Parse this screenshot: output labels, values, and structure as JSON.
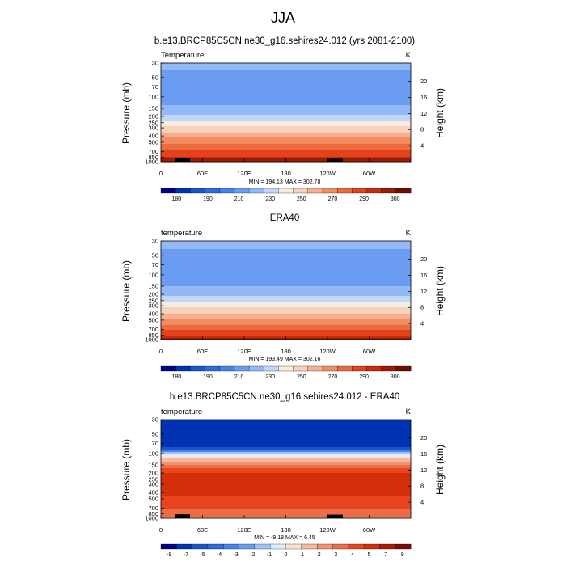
{
  "page": {
    "title": "JJA"
  },
  "colors": {
    "scale_blue_to_red": [
      "#00008b",
      "#0033b3",
      "#1a55cc",
      "#2e6be0",
      "#4682ec",
      "#6a9cf2",
      "#93b8f6",
      "#c2d6fa",
      "#f5ece2",
      "#f9d2be",
      "#f6b08f",
      "#f28d62",
      "#ec6a3c",
      "#e2431c",
      "#c72b0c",
      "#9c1a06",
      "#6a0d02"
    ],
    "diff_scale": [
      "#00008b",
      "#0033b3",
      "#1a55cc",
      "#2e6be0",
      "#4682ec",
      "#6a9cf2",
      "#a0c2f8",
      "#e0ecfc",
      "#fbe1d2",
      "#f7b99b",
      "#f39271",
      "#ee6c47",
      "#e7441f",
      "#d22f0a",
      "#a71c05",
      "#7a0c02"
    ],
    "topography": "#000000"
  },
  "chart_data": [
    {
      "type": "heatmap",
      "title": "b.e13.BRCP85C5CN.ne30_g16.sehires24.012 (yrs 2081-2100)",
      "left_label": "Temperature",
      "right_label": "K",
      "xlabel": "",
      "ylabel": "Pressure (mb)",
      "ylabel_right": "Height (km)",
      "x_ticks": [
        "0",
        "60E",
        "120E",
        "180",
        "120W",
        "60W"
      ],
      "x_tick_lon": [
        0,
        60,
        120,
        180,
        240,
        300
      ],
      "xlim": [
        0,
        360
      ],
      "y_scale": "log",
      "ylim": [
        1000,
        30
      ],
      "y_ticks": [
        30,
        50,
        70,
        100,
        150,
        200,
        250,
        300,
        400,
        500,
        700,
        850,
        1000
      ],
      "height_ticks_km": [
        4,
        8,
        12,
        16,
        20
      ],
      "stats": "MIN = 194.13  MAX = 302.78",
      "colorbar_labels": [
        "180",
        "190",
        "210",
        "230",
        "250",
        "270",
        "290",
        "300"
      ],
      "approx_profile_K": [
        {
          "p": 1000,
          "v": 300
        },
        {
          "p": 850,
          "v": 291
        },
        {
          "p": 700,
          "v": 283
        },
        {
          "p": 500,
          "v": 266
        },
        {
          "p": 400,
          "v": 257
        },
        {
          "p": 300,
          "v": 243
        },
        {
          "p": 250,
          "v": 233
        },
        {
          "p": 200,
          "v": 222
        },
        {
          "p": 150,
          "v": 212
        },
        {
          "p": 100,
          "v": 203
        },
        {
          "p": 70,
          "v": 205
        },
        {
          "p": 50,
          "v": 208
        },
        {
          "p": 30,
          "v": 212
        }
      ]
    },
    {
      "type": "heatmap",
      "title": "ERA40",
      "left_label": "temperature",
      "right_label": "K",
      "xlabel": "",
      "ylabel": "Pressure (mb)",
      "ylabel_right": "Height (km)",
      "x_ticks": [
        "0",
        "60E",
        "120E",
        "180",
        "120W",
        "60W"
      ],
      "x_tick_lon": [
        0,
        60,
        120,
        180,
        240,
        300
      ],
      "xlim": [
        0,
        360
      ],
      "y_scale": "log",
      "ylim": [
        1000,
        30
      ],
      "y_ticks": [
        30,
        50,
        70,
        100,
        150,
        200,
        250,
        300,
        400,
        500,
        700,
        850,
        1000
      ],
      "height_ticks_km": [
        4,
        8,
        12,
        16,
        20
      ],
      "stats": "MIN = 193.49  MAX = 302.16",
      "colorbar_labels": [
        "180",
        "190",
        "210",
        "230",
        "250",
        "270",
        "290",
        "300"
      ],
      "approx_profile_K": [
        {
          "p": 1000,
          "v": 297
        },
        {
          "p": 850,
          "v": 287
        },
        {
          "p": 700,
          "v": 279
        },
        {
          "p": 500,
          "v": 262
        },
        {
          "p": 400,
          "v": 251
        },
        {
          "p": 300,
          "v": 236
        },
        {
          "p": 250,
          "v": 226
        },
        {
          "p": 200,
          "v": 218
        },
        {
          "p": 150,
          "v": 210
        },
        {
          "p": 100,
          "v": 201
        },
        {
          "p": 70,
          "v": 204
        },
        {
          "p": 50,
          "v": 208
        },
        {
          "p": 30,
          "v": 213
        }
      ]
    },
    {
      "type": "heatmap",
      "title": "b.e13.BRCP85C5CN.ne30_g16.sehires24.012 - ERA40",
      "left_label": "temperature",
      "right_label": "K",
      "xlabel": "",
      "ylabel": "Pressure (mb)",
      "ylabel_right": "Height (km)",
      "x_ticks": [
        "0",
        "60E",
        "120E",
        "180",
        "120W",
        "60W"
      ],
      "x_tick_lon": [
        0,
        60,
        120,
        180,
        240,
        300
      ],
      "xlim": [
        0,
        360
      ],
      "y_scale": "log",
      "ylim": [
        1000,
        30
      ],
      "y_ticks": [
        30,
        50,
        70,
        100,
        150,
        200,
        250,
        300,
        400,
        500,
        700,
        850,
        1000
      ],
      "height_ticks_km": [
        4,
        8,
        12,
        16,
        20
      ],
      "stats": "MIN = -9.18  MAX = 6.45",
      "colorbar_labels": [
        "-9",
        "-7",
        "-5",
        "-4",
        "-3",
        "-2",
        "-1",
        "0",
        "1",
        "2",
        "3",
        "4",
        "5",
        "7",
        "9"
      ],
      "approx_profile_K": [
        {
          "p": 1000,
          "v": 2.5
        },
        {
          "p": 850,
          "v": 3.5
        },
        {
          "p": 700,
          "v": 4
        },
        {
          "p": 500,
          "v": 4.5
        },
        {
          "p": 400,
          "v": 5.5
        },
        {
          "p": 300,
          "v": 6
        },
        {
          "p": 250,
          "v": 6
        },
        {
          "p": 200,
          "v": 5
        },
        {
          "p": 150,
          "v": 3
        },
        {
          "p": 120,
          "v": 1
        },
        {
          "p": 100,
          "v": -1
        },
        {
          "p": 85,
          "v": -6
        },
        {
          "p": 70,
          "v": -9
        },
        {
          "p": 30,
          "v": -9
        }
      ]
    }
  ]
}
